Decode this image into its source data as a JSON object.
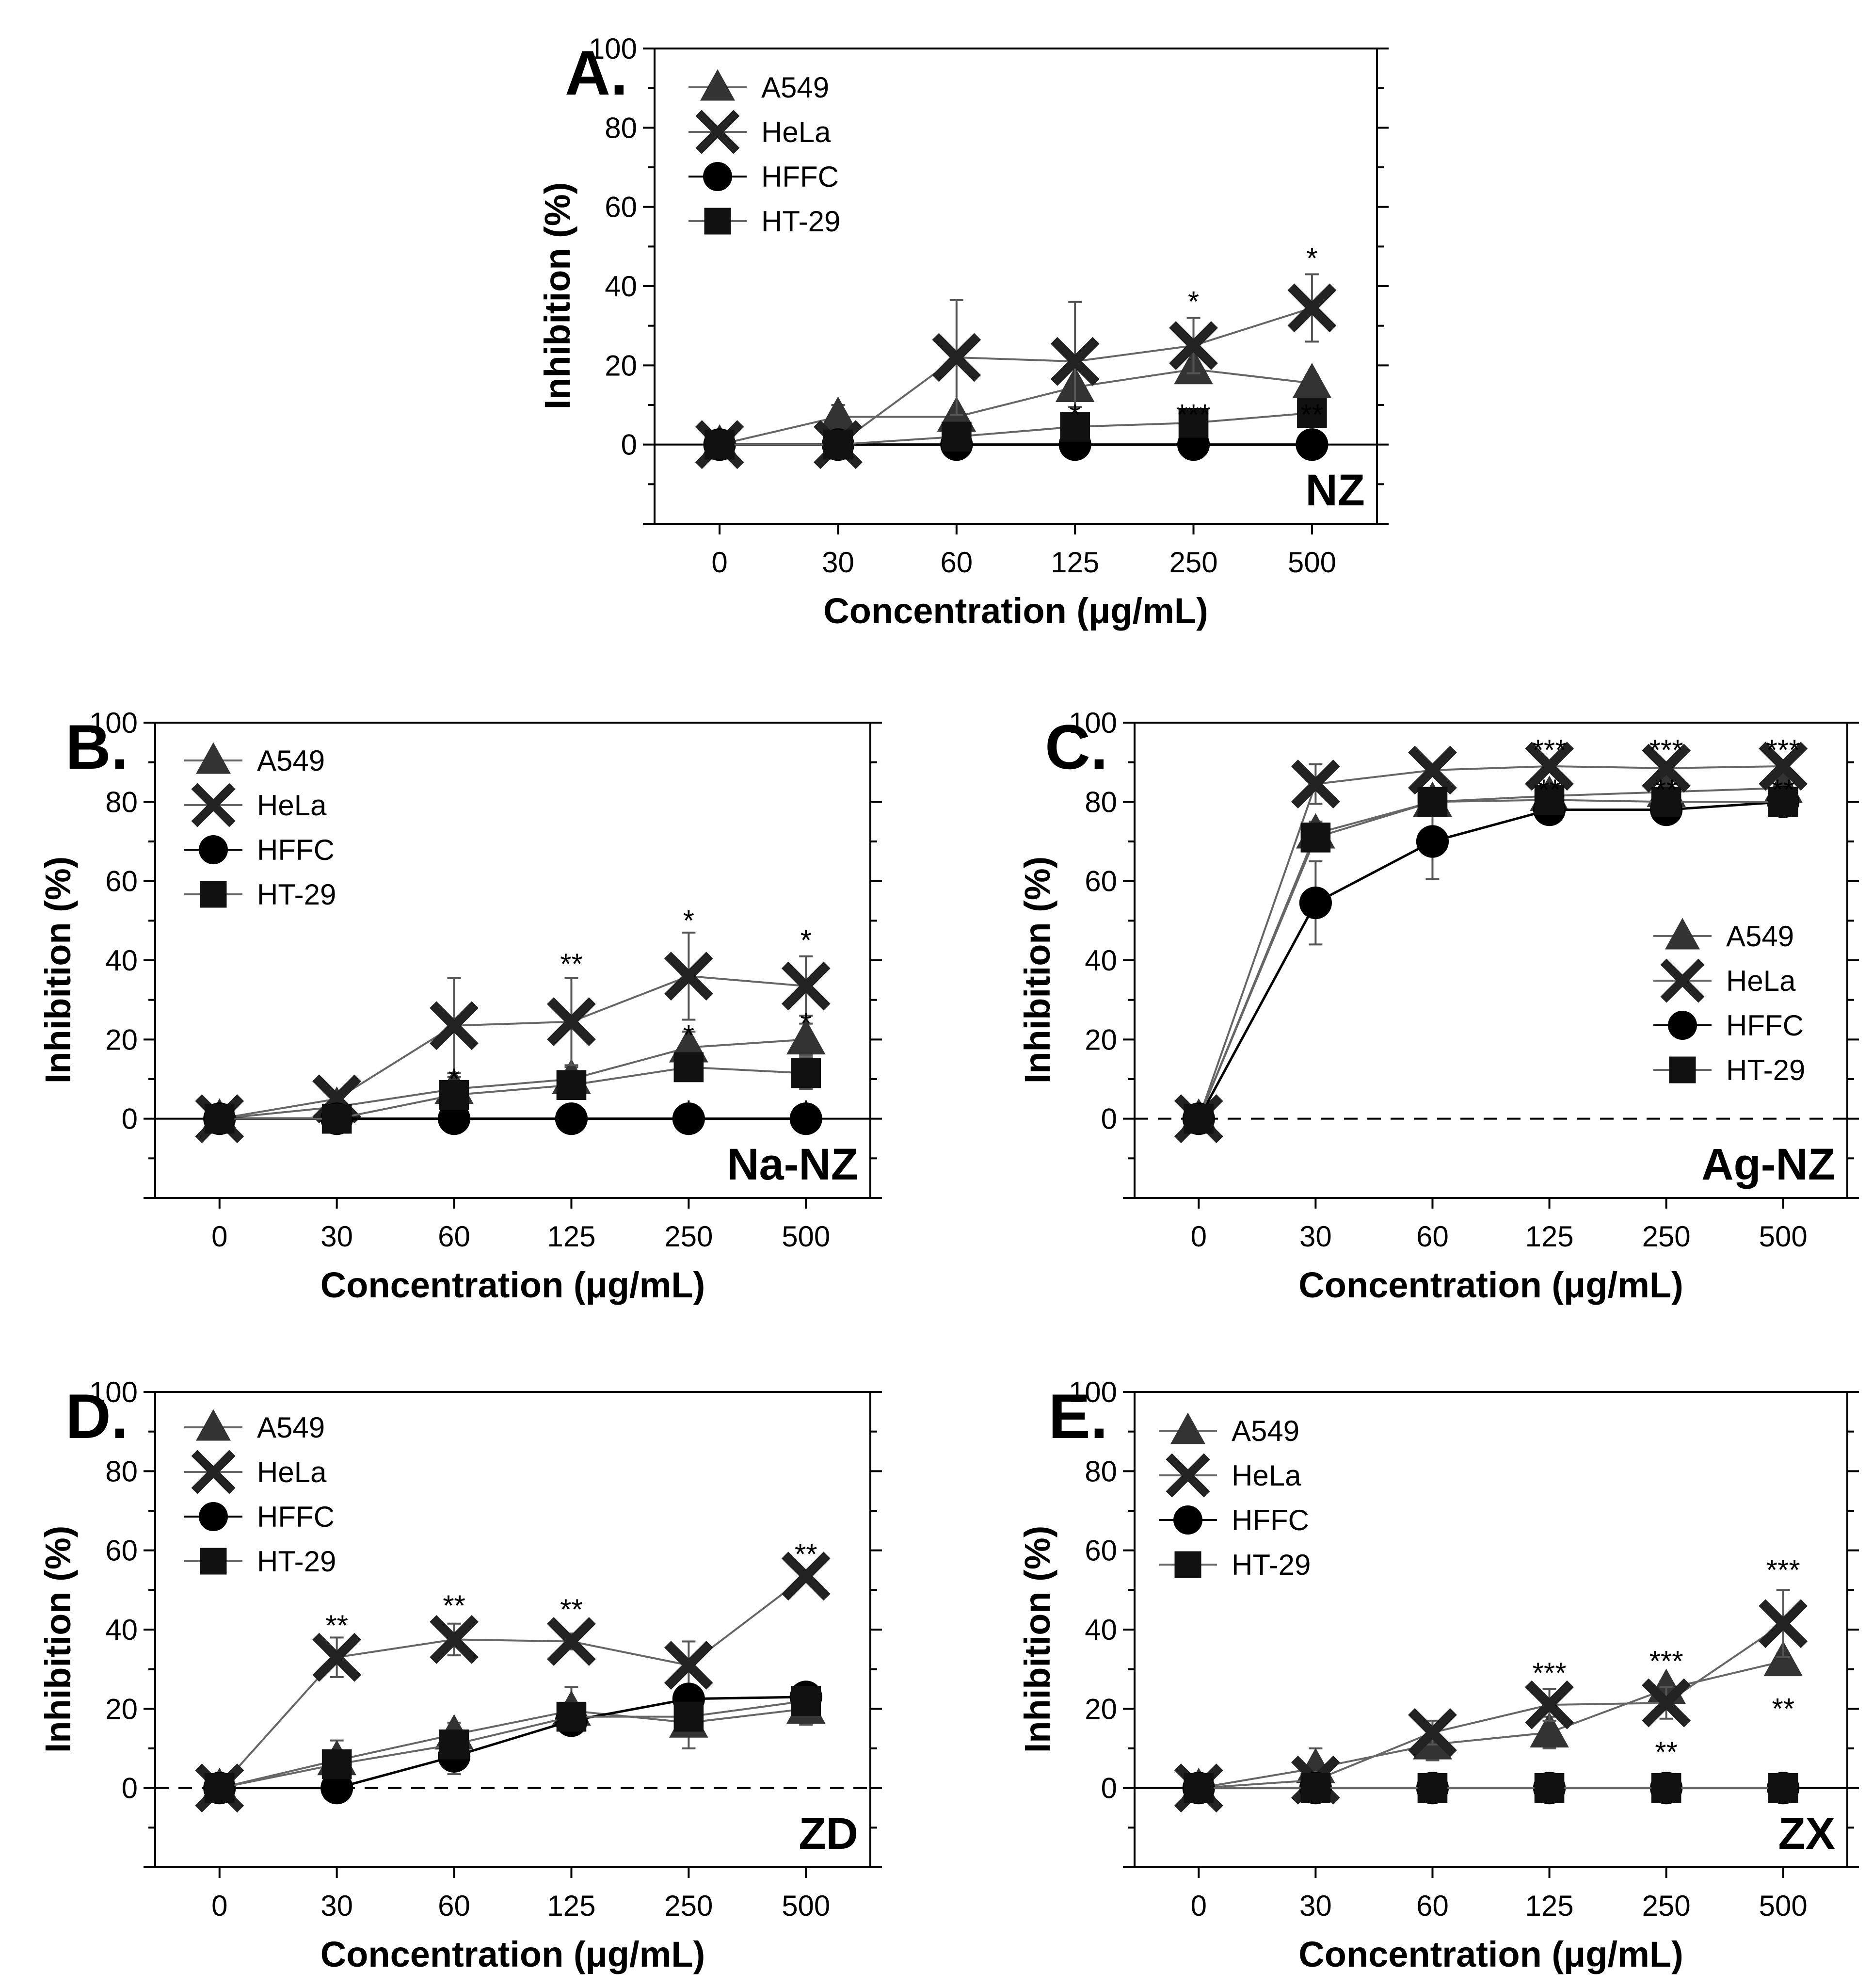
{
  "colors": {
    "A549": "#333333",
    "HeLa": "#222222",
    "HFFC": "#000000",
    "HT-29": "#111111",
    "line_gray": "#666666",
    "line_black": "#000000"
  },
  "chart_data": [
    {
      "type": "line",
      "panel": "A.",
      "compound": "NZ",
      "xlabel": "Concentration (μg/mL)",
      "ylabel": "Inhibition (%)",
      "categories": [
        "0",
        "30",
        "60",
        "125",
        "250",
        "500"
      ],
      "ylim": [
        -20,
        100
      ],
      "yticks": [
        "0",
        "20",
        "40",
        "60",
        "80",
        "100"
      ],
      "zero_line": "solid",
      "legend_position": "top-left",
      "series": [
        {
          "name": "A549",
          "marker": "triangle",
          "values": [
            0,
            7,
            7,
            14.5,
            19,
            15.5
          ],
          "errors": [
            0,
            3,
            2,
            5,
            2,
            2
          ]
        },
        {
          "name": "HeLa",
          "marker": "x",
          "values": [
            0,
            0,
            22,
            21,
            25,
            34.5
          ],
          "errors": [
            0,
            0,
            14.5,
            15,
            7,
            8.5
          ]
        },
        {
          "name": "HFFC",
          "marker": "circle",
          "values": [
            0,
            0,
            0,
            0,
            0,
            0
          ],
          "errors": [
            0,
            0,
            0,
            0,
            0,
            0
          ]
        },
        {
          "name": "HT-29",
          "marker": "square",
          "values": [
            0,
            0,
            2,
            4.5,
            5.5,
            8
          ],
          "errors": [
            0,
            0,
            1,
            1,
            1,
            1
          ]
        }
      ],
      "annotations": [
        {
          "text": "*",
          "x": "250",
          "y": 36
        },
        {
          "text": "*",
          "x": "500",
          "y": 47
        },
        {
          "text": "*",
          "x": "125",
          "y": 7.5
        },
        {
          "text": "***",
          "x": "250",
          "y": 7.5
        },
        {
          "text": "**",
          "x": "500",
          "y": 7.5
        },
        {
          "text": "*",
          "x": "500",
          "y": -1
        }
      ]
    },
    {
      "type": "line",
      "panel": "B.",
      "compound": "Na-NZ",
      "xlabel": "Concentration (μg/mL)",
      "ylabel": "Inhibition (%)",
      "categories": [
        "0",
        "30",
        "60",
        "125",
        "250",
        "500"
      ],
      "ylim": [
        -20,
        100
      ],
      "yticks": [
        "0",
        "20",
        "40",
        "60",
        "80",
        "100"
      ],
      "zero_line": "solid",
      "legend_position": "top-left",
      "series": [
        {
          "name": "A549",
          "marker": "triangle",
          "values": [
            0,
            3,
            7.5,
            10,
            18,
            20
          ],
          "errors": [
            0,
            1,
            3,
            3,
            4,
            4
          ]
        },
        {
          "name": "HeLa",
          "marker": "x",
          "values": [
            0,
            5,
            23.5,
            24.5,
            36,
            33.5
          ],
          "errors": [
            0,
            1,
            12,
            11,
            11,
            7.5
          ]
        },
        {
          "name": "HFFC",
          "marker": "circle",
          "values": [
            0,
            0,
            0,
            0,
            0,
            0
          ],
          "errors": [
            0,
            0,
            0,
            0,
            0,
            0
          ]
        },
        {
          "name": "HT-29",
          "marker": "square",
          "values": [
            0,
            0,
            6,
            8.5,
            13,
            11.5
          ],
          "errors": [
            0,
            0,
            2,
            2,
            3,
            4
          ]
        }
      ],
      "annotations": [
        {
          "text": "**",
          "x": "125",
          "y": 39
        },
        {
          "text": "*",
          "x": "250",
          "y": 50
        },
        {
          "text": "*",
          "x": "500",
          "y": 45
        },
        {
          "text": "*",
          "x": "60",
          "y": 10
        },
        {
          "text": "*",
          "x": "250",
          "y": 21
        },
        {
          "text": "*",
          "x": "500",
          "y": 24
        },
        {
          "text": "*",
          "x": "250",
          "y": 2
        },
        {
          "text": "*",
          "x": "500",
          "y": 2
        }
      ]
    },
    {
      "type": "line",
      "panel": "C.",
      "compound": "Ag-NZ",
      "xlabel": "Concentration (μg/mL)",
      "ylabel": "Inhibition (%)",
      "categories": [
        "0",
        "30",
        "60",
        "125",
        "250",
        "500"
      ],
      "ylim": [
        -20,
        100
      ],
      "yticks": [
        "0",
        "20",
        "40",
        "60",
        "80",
        "100"
      ],
      "zero_line": "dashed",
      "legend_position": "right",
      "series": [
        {
          "name": "A549",
          "marker": "triangle",
          "values": [
            0,
            72,
            80,
            81.5,
            82.5,
            83.5
          ],
          "errors": [
            0,
            3,
            1,
            1,
            1,
            1
          ]
        },
        {
          "name": "HeLa",
          "marker": "x",
          "values": [
            0,
            84.5,
            88,
            89,
            88.5,
            89
          ],
          "errors": [
            0,
            5,
            1,
            1,
            1,
            1
          ]
        },
        {
          "name": "HFFC",
          "marker": "circle",
          "values": [
            0,
            54.5,
            70,
            78,
            78,
            80
          ],
          "errors": [
            0,
            10.5,
            9.5,
            1,
            1,
            1
          ]
        },
        {
          "name": "HT-29",
          "marker": "square",
          "values": [
            0,
            71,
            80,
            80.5,
            80,
            80
          ],
          "errors": [
            0,
            3,
            2,
            1,
            1,
            1
          ]
        }
      ],
      "annotations": [
        {
          "text": "***",
          "x": "125",
          "y": 93
        },
        {
          "text": "***",
          "x": "250",
          "y": 93
        },
        {
          "text": "***",
          "x": "500",
          "y": 93
        },
        {
          "text": "**",
          "x": "125",
          "y": 83
        },
        {
          "text": "**",
          "x": "250",
          "y": 83
        },
        {
          "text": "**",
          "x": "500",
          "y": 83
        }
      ]
    },
    {
      "type": "line",
      "panel": "D.",
      "compound": "ZD",
      "xlabel": "Concentration (μg/mL)",
      "ylabel": "Inhibition (%)",
      "categories": [
        "0",
        "30",
        "60",
        "125",
        "250",
        "500"
      ],
      "ylim": [
        -20,
        100
      ],
      "yticks": [
        "0",
        "20",
        "40",
        "60",
        "80",
        "100"
      ],
      "zero_line": "dashed",
      "legend_position": "top-left",
      "series": [
        {
          "name": "A549",
          "marker": "triangle",
          "values": [
            0,
            7,
            13.5,
            19.5,
            16.5,
            20
          ],
          "errors": [
            0,
            5,
            3,
            6,
            6.5,
            4
          ]
        },
        {
          "name": "HeLa",
          "marker": "x",
          "values": [
            0,
            33,
            37.5,
            37,
            31,
            53.5
          ],
          "errors": [
            0,
            5,
            4,
            2,
            6,
            1
          ]
        },
        {
          "name": "HFFC",
          "marker": "circle",
          "values": [
            0,
            0,
            8,
            17,
            22.5,
            23
          ],
          "errors": [
            0,
            0,
            4.5,
            2,
            2,
            1
          ]
        },
        {
          "name": "HT-29",
          "marker": "square",
          "values": [
            0,
            6,
            11,
            18,
            18,
            22
          ],
          "errors": [
            0,
            2,
            2,
            3,
            3,
            2
          ]
        }
      ],
      "annotations": [
        {
          "text": "**",
          "x": "30",
          "y": 41
        },
        {
          "text": "**",
          "x": "60",
          "y": 46
        },
        {
          "text": "**",
          "x": "125",
          "y": 45
        },
        {
          "text": "**",
          "x": "500",
          "y": 59
        }
      ]
    },
    {
      "type": "line",
      "panel": "E.",
      "compound": "ZX",
      "xlabel": "Concentration (μg/mL)",
      "ylabel": "Inhibition (%)",
      "categories": [
        "0",
        "30",
        "60",
        "125",
        "250",
        "500"
      ],
      "ylim": [
        -20,
        100
      ],
      "yticks": [
        "0",
        "20",
        "40",
        "60",
        "80",
        "100"
      ],
      "zero_line": "solid",
      "legend_position": "top-left",
      "series": [
        {
          "name": "A549",
          "marker": "triangle",
          "values": [
            0,
            5,
            11,
            14,
            25,
            32
          ],
          "errors": [
            0,
            5,
            4,
            4,
            2,
            2
          ]
        },
        {
          "name": "HeLa",
          "marker": "x",
          "values": [
            0,
            2,
            14,
            21,
            21.5,
            41.5
          ],
          "errors": [
            0,
            2,
            3,
            4,
            4,
            8.5
          ]
        },
        {
          "name": "HFFC",
          "marker": "circle",
          "values": [
            0,
            0,
            0,
            0,
            0,
            0
          ],
          "errors": [
            0,
            0,
            0,
            0,
            0,
            0
          ]
        },
        {
          "name": "HT-29",
          "marker": "square",
          "values": [
            0,
            0,
            0,
            0,
            0,
            0
          ],
          "errors": [
            0,
            0,
            0,
            0,
            0,
            0
          ]
        }
      ],
      "annotations": [
        {
          "text": "***",
          "x": "125",
          "y": 29
        },
        {
          "text": "***",
          "x": "250",
          "y": 32
        },
        {
          "text": "***",
          "x": "500",
          "y": 55
        },
        {
          "text": "**",
          "x": "250",
          "y": 9
        },
        {
          "text": "**",
          "x": "500",
          "y": 20
        }
      ]
    }
  ]
}
